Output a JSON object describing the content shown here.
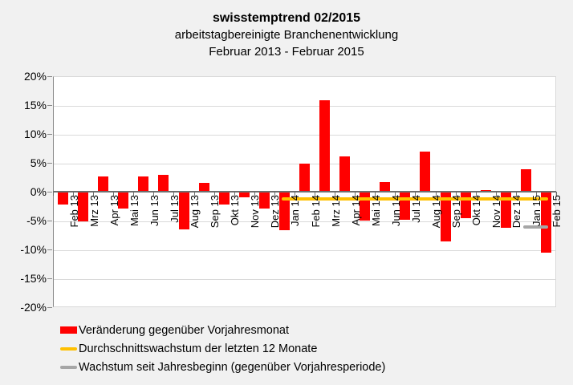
{
  "title": {
    "line1": "swisstemptrend 02/2015",
    "line2": "arbeitstagbereinigte Branchenentwicklung",
    "line3": "Februar 2013 - Februar 2015"
  },
  "colors": {
    "bar": "#ff0000",
    "avg_line": "#ffc000",
    "ytd_line": "#a6a6a6",
    "gridline": "#d9d9d9",
    "axis": "#898989",
    "plot_bg": "#ffffff",
    "page_bg": "#f1f1f1"
  },
  "y_axis": {
    "tick_labels": [
      "20%",
      "15%",
      "10%",
      "5%",
      "0%",
      "-5%",
      "-10%",
      "-15%",
      "-20%"
    ],
    "max": 20,
    "min": -20,
    "step": 5
  },
  "chart_data": {
    "type": "bar",
    "title": "swisstemptrend 02/2015",
    "subtitle": "arbeitstagbereinigte Branchenentwicklung, Februar 2013 - Februar 2015",
    "ylim": [
      -20,
      20
    ],
    "ytick_step": 5,
    "grid": true,
    "legend_position": "bottom-left",
    "categories": [
      "Feb 13",
      "Mrz 13",
      "Apr 13",
      "Mai 13",
      "Jun 13",
      "Jul 13",
      "Aug 13",
      "Sep 13",
      "Okt 13",
      "Nov 13",
      "Dez 13",
      "Jan 14",
      "Feb 14",
      "Mrz 14",
      "Apr 14",
      "Mai 14",
      "Jun 14",
      "Jul 14",
      "Aug 14",
      "Sep 14",
      "Okt 14",
      "Nov 14",
      "Dez 14",
      "Jan 15",
      "Feb 15"
    ],
    "series": [
      {
        "name": "Veränderung gegenüber Vorjahresmonat",
        "type": "bar",
        "color": "#ff0000",
        "values": [
          -2.2,
          -5.1,
          2.6,
          -2.9,
          2.6,
          2.9,
          -6.5,
          1.5,
          -2.2,
          -1.0,
          -2.9,
          -6.7,
          4.9,
          15.9,
          6.1,
          -5.0,
          1.7,
          -4.9,
          6.9,
          -8.6,
          -4.6,
          0.3,
          -6.2,
          3.9,
          -10.5
        ]
      },
      {
        "name": "Durchschnittswachstum der letzten 12 Monate",
        "type": "line",
        "color": "#ffc000",
        "value": -1.2,
        "from_category": "Jan 14",
        "to_category": "Feb 15"
      },
      {
        "name": "Wachstum seit Jahresbeginn (gegenüber Vorjahresperiode)",
        "type": "line",
        "color": "#a6a6a6",
        "value": -6.1,
        "from_category": "Jan 15",
        "to_category": "Feb 15"
      }
    ]
  },
  "legend": {
    "items": [
      {
        "swatch": "bar-swatch-red",
        "label": "Veränderung gegenüber Vorjahresmonat"
      },
      {
        "swatch": "line-swatch-yellow",
        "label": "Durchschnittswachstum der letzten 12 Monate"
      },
      {
        "swatch": "line-swatch-gray",
        "label": "Wachstum seit Jahresbeginn (gegenüber Vorjahresperiode)"
      }
    ]
  }
}
